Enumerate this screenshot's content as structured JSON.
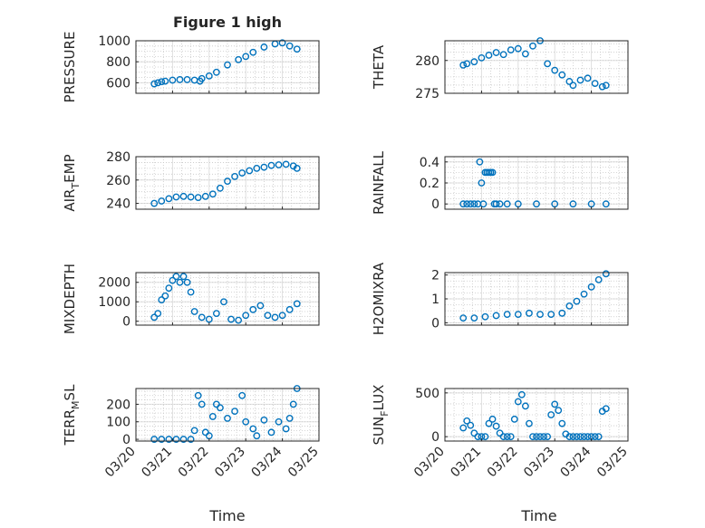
{
  "figure": {
    "title": "Figure 1 high",
    "xlabel_left": "Time",
    "xlabel_right": "Time"
  },
  "style": {
    "marker_color": "#0072BD",
    "axis_color": "#262626",
    "grid_color": "#dfdfdf",
    "minor_grid_color": "#c8c8c8"
  },
  "chart_data": [
    {
      "type": "scatter",
      "ylabel": "PRESSURE",
      "xlim": [
        "03/20",
        "03/25"
      ],
      "ylim": [
        500,
        1000
      ],
      "yticks": [
        600,
        800,
        1000
      ],
      "x_days": [
        0.5,
        0.6,
        0.7,
        0.8,
        1.0,
        1.2,
        1.4,
        1.6,
        1.75,
        1.8,
        2.0,
        2.2,
        2.5,
        2.8,
        3.0,
        3.2,
        3.5,
        3.8,
        4.0,
        4.2,
        4.4
      ],
      "values": [
        590,
        600,
        610,
        615,
        625,
        630,
        630,
        625,
        615,
        640,
        665,
        700,
        770,
        820,
        850,
        890,
        940,
        970,
        980,
        950,
        920
      ]
    },
    {
      "type": "scatter",
      "ylabel": "THETA",
      "xlim": [
        "03/20",
        "03/25"
      ],
      "ylim": [
        275,
        283
      ],
      "yticks": [
        275,
        280
      ],
      "x_days": [
        0.5,
        0.6,
        0.8,
        1.0,
        1.2,
        1.4,
        1.6,
        1.8,
        2.0,
        2.2,
        2.4,
        2.6,
        2.8,
        3.0,
        3.2,
        3.4,
        3.5,
        3.7,
        3.9,
        4.1,
        4.3,
        4.4
      ],
      "values": [
        279.3,
        279.5,
        279.8,
        280.4,
        280.8,
        281.2,
        280.9,
        281.6,
        281.8,
        281.0,
        282.2,
        283.0,
        279.5,
        278.5,
        277.8,
        276.8,
        276.2,
        277.0,
        277.3,
        276.5,
        276.0,
        276.2
      ]
    },
    {
      "type": "scatter",
      "ylabel": "AIR_TEMP",
      "xlim": [
        "03/20",
        "03/25"
      ],
      "ylim": [
        235,
        280
      ],
      "yticks": [
        240,
        260,
        280
      ],
      "x_days": [
        0.5,
        0.7,
        0.9,
        1.1,
        1.3,
        1.5,
        1.7,
        1.9,
        2.1,
        2.3,
        2.5,
        2.7,
        2.9,
        3.1,
        3.3,
        3.5,
        3.7,
        3.9,
        4.1,
        4.3,
        4.4
      ],
      "values": [
        240,
        242,
        244,
        245.5,
        246,
        245.5,
        245,
        246,
        248,
        253,
        259,
        263,
        266,
        268,
        270,
        271,
        272.5,
        273,
        273.5,
        272,
        270
      ]
    },
    {
      "type": "scatter",
      "ylabel": "RAINFALL",
      "xlim": [
        "03/20",
        "03/25"
      ],
      "ylim": [
        -0.05,
        0.45
      ],
      "yticks": [
        0,
        0.2,
        0.4
      ],
      "x_days": [
        0.5,
        0.6,
        0.7,
        0.8,
        0.9,
        0.95,
        1.0,
        1.05,
        1.1,
        1.15,
        1.2,
        1.25,
        1.3,
        1.35,
        1.4,
        1.5,
        1.7,
        2.0,
        2.5,
        3.0,
        3.5,
        4.0,
        4.4
      ],
      "values": [
        0,
        0,
        0,
        0,
        0,
        0.4,
        0.2,
        0,
        0.3,
        0.3,
        0.3,
        0.3,
        0.3,
        0,
        0,
        0,
        0,
        0,
        0,
        0,
        0,
        0,
        0
      ]
    },
    {
      "type": "scatter",
      "ylabel": "MIXDEPTH",
      "xlim": [
        "03/20",
        "03/25"
      ],
      "ylim": [
        -200,
        2500
      ],
      "yticks": [
        0,
        1000,
        2000
      ],
      "x_days": [
        0.5,
        0.6,
        0.7,
        0.8,
        0.9,
        1.0,
        1.1,
        1.2,
        1.3,
        1.4,
        1.5,
        1.6,
        1.8,
        2.0,
        2.2,
        2.4,
        2.6,
        2.8,
        3.0,
        3.2,
        3.4,
        3.6,
        3.8,
        4.0,
        4.2,
        4.4
      ],
      "values": [
        200,
        400,
        1100,
        1300,
        1700,
        2100,
        2300,
        2000,
        2300,
        2000,
        1500,
        500,
        200,
        100,
        400,
        1000,
        100,
        50,
        300,
        600,
        800,
        300,
        200,
        300,
        600,
        900
      ]
    },
    {
      "type": "scatter",
      "ylabel": "H2OMIXRA",
      "xlim": [
        "03/20",
        "03/25"
      ],
      "ylim": [
        -0.1,
        2.1
      ],
      "yticks": [
        0,
        1,
        2
      ],
      "x_days": [
        0.5,
        0.8,
        1.1,
        1.4,
        1.7,
        2.0,
        2.3,
        2.6,
        2.9,
        3.2,
        3.4,
        3.6,
        3.8,
        4.0,
        4.2,
        4.4
      ],
      "values": [
        0.2,
        0.2,
        0.25,
        0.3,
        0.35,
        0.35,
        0.4,
        0.35,
        0.35,
        0.4,
        0.7,
        0.9,
        1.2,
        1.5,
        1.8,
        2.05
      ]
    },
    {
      "type": "scatter",
      "ylabel": "TERR_MSL",
      "xlim": [
        "03/20",
        "03/25"
      ],
      "ylim": [
        -10,
        290
      ],
      "yticks": [
        0,
        100,
        200
      ],
      "x_days": [
        0.5,
        0.7,
        0.9,
        1.1,
        1.3,
        1.5,
        1.6,
        1.7,
        1.8,
        1.9,
        2.0,
        2.1,
        2.2,
        2.3,
        2.5,
        2.7,
        2.9,
        3.0,
        3.2,
        3.3,
        3.5,
        3.7,
        3.9,
        4.1,
        4.2,
        4.3,
        4.4
      ],
      "values": [
        0,
        0,
        0,
        0,
        0,
        0,
        50,
        250,
        200,
        40,
        20,
        130,
        200,
        180,
        120,
        160,
        250,
        100,
        60,
        20,
        110,
        40,
        100,
        60,
        120,
        200,
        290
      ]
    },
    {
      "type": "scatter",
      "ylabel": "SUN_FLUX",
      "xlim": [
        "03/20",
        "03/25"
      ],
      "ylim": [
        -50,
        550
      ],
      "yticks": [
        0,
        500
      ],
      "x_days": [
        0.5,
        0.6,
        0.7,
        0.8,
        0.9,
        1.0,
        1.1,
        1.2,
        1.3,
        1.4,
        1.5,
        1.6,
        1.7,
        1.8,
        1.9,
        2.0,
        2.1,
        2.2,
        2.3,
        2.4,
        2.5,
        2.6,
        2.7,
        2.8,
        2.9,
        3.0,
        3.1,
        3.2,
        3.3,
        3.4,
        3.5,
        3.6,
        3.7,
        3.8,
        3.9,
        4.0,
        4.1,
        4.2,
        4.3,
        4.4
      ],
      "values": [
        100,
        180,
        130,
        40,
        0,
        0,
        0,
        150,
        200,
        120,
        40,
        0,
        0,
        0,
        200,
        400,
        480,
        350,
        150,
        0,
        0,
        0,
        0,
        0,
        250,
        370,
        300,
        150,
        30,
        0,
        0,
        0,
        0,
        0,
        0,
        0,
        0,
        0,
        290,
        320
      ]
    }
  ],
  "xticks": [
    "03/20",
    "03/21",
    "03/22",
    "03/23",
    "03/24",
    "03/25"
  ]
}
